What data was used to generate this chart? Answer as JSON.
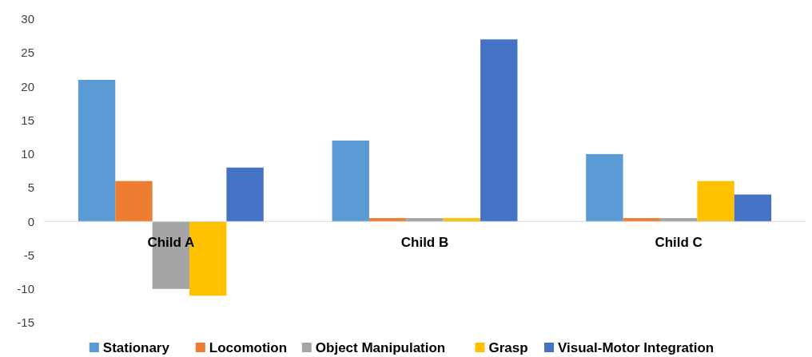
{
  "chart_data": {
    "type": "bar",
    "categories": [
      "Child A",
      "Child B",
      "Child C"
    ],
    "series": [
      {
        "name": "Stationary",
        "color": "#5b9bd5",
        "values": [
          21,
          12,
          10
        ]
      },
      {
        "name": "Locomotion",
        "color": "#ed7d31",
        "values": [
          6,
          0.5,
          0.5
        ]
      },
      {
        "name": "Object Manipulation",
        "color": "#a5a5a5",
        "values": [
          -10,
          0.5,
          0.5
        ]
      },
      {
        "name": "Grasp",
        "color": "#ffc000",
        "values": [
          -11,
          0.5,
          6
        ]
      },
      {
        "name": "Visual-Motor Integration",
        "color": "#4472c4",
        "values": [
          8,
          27,
          4
        ]
      }
    ],
    "ylim": [
      -15,
      30
    ],
    "yticks": [
      -15,
      -10,
      -5,
      0,
      5,
      10,
      15,
      20,
      25,
      30
    ],
    "legend": "bottom"
  }
}
